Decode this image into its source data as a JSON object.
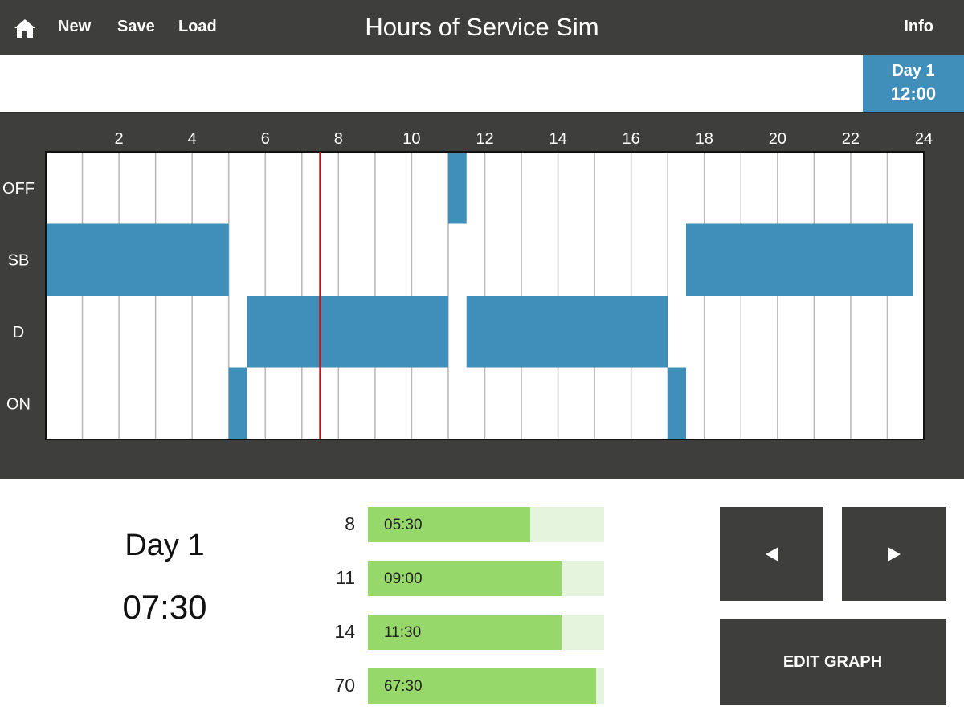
{
  "header": {
    "title": "Hours of Service Sim",
    "buttons": {
      "new": "New",
      "save": "Save",
      "load": "Load",
      "info": "Info"
    }
  },
  "day_tab": {
    "day": "Day 1",
    "time": "12:00"
  },
  "graph": {
    "x_ticks": [
      "2",
      "4",
      "6",
      "8",
      "10",
      "12",
      "14",
      "16",
      "18",
      "20",
      "22",
      "24"
    ],
    "rows": [
      "OFF",
      "SB",
      "D",
      "ON"
    ],
    "current_hour": 7.5,
    "segments": [
      {
        "status": "SB",
        "start": 0,
        "end": 5
      },
      {
        "status": "ON",
        "start": 5,
        "end": 5.5
      },
      {
        "status": "D",
        "start": 5.5,
        "end": 11
      },
      {
        "status": "OFF",
        "start": 11,
        "end": 11.5
      },
      {
        "status": "D",
        "start": 11.5,
        "end": 17
      },
      {
        "status": "ON",
        "start": 17,
        "end": 17.5
      },
      {
        "status": "SB",
        "start": 17.5,
        "end": 23.7
      }
    ],
    "colors": {
      "bar": "#3f8fba",
      "cursor": "#c0141c",
      "grid": "#b8b8b8"
    }
  },
  "status": {
    "day": "Day 1",
    "time": "07:30"
  },
  "limits": [
    {
      "label": "8",
      "value": "05:30",
      "fraction": 0.6875
    },
    {
      "label": "11",
      "value": "09:00",
      "fraction": 0.8182
    },
    {
      "label": "14",
      "value": "11:30",
      "fraction": 0.8214
    },
    {
      "label": "70",
      "value": "67:30",
      "fraction": 0.9643
    }
  ],
  "controls": {
    "edit_graph": "EDIT GRAPH"
  }
}
